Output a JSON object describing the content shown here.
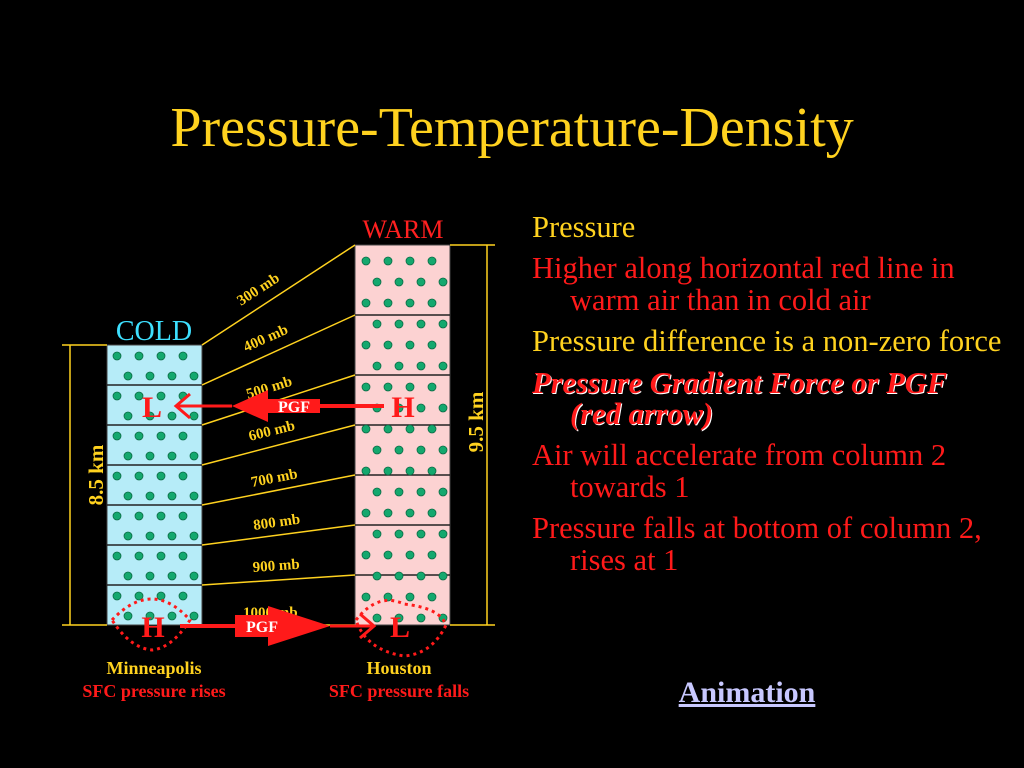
{
  "title": "Pressure-Temperature-Density",
  "diagram": {
    "warm_label": "WARM",
    "cold_label": "COLD",
    "warm_height": "9.5 km",
    "cold_height": "8.5 km",
    "pressure_levels": [
      "300 mb",
      "400 mb",
      "500 mb",
      "600 mb",
      "700 mb",
      "800 mb",
      "900 mb",
      "1000 mb"
    ],
    "upper_left_letter": "L",
    "upper_right_letter": "H",
    "upper_arrow_label": "PGF",
    "lower_left_letter": "H",
    "lower_right_letter": "L",
    "lower_arrow_label": "PGF",
    "left_city": "Minneapolis",
    "left_caption": "SFC pressure rises",
    "right_city": "Houston",
    "right_caption": "SFC pressure falls"
  },
  "bullets": [
    {
      "text": "Pressure",
      "color": "#ffd21f"
    },
    {
      "text": "Higher along horizontal red line in warm air than in cold air",
      "color": "#ff1a1a"
    },
    {
      "text": "Pressure difference is a non-zero force",
      "color": "#ffd21f"
    },
    {
      "text": "Pressure Gradient Force or PGF (red arrow)",
      "color": "#ff1a1a"
    },
    {
      "text": "Air will accelerate from column 2 towards 1",
      "color": "#ff1a1a"
    },
    {
      "text": "Pressure falls at bottom of column 2, rises at 1",
      "color": "#ff1a1a"
    }
  ],
  "animation_link": "Animation",
  "colors": {
    "title": "#ffd21f",
    "cold_column": "#b6ecf8",
    "warm_column": "#fcd2d2",
    "dots": "#14a86e",
    "arrow": "#ff1a1a",
    "cold_label": "#3ee0ff",
    "warm_label": "#ff2020"
  }
}
